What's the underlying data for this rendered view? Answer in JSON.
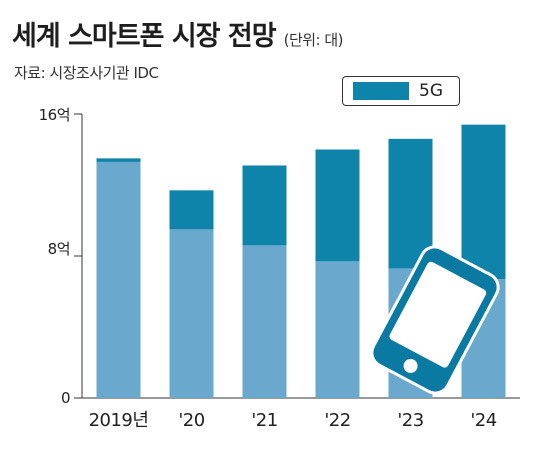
{
  "title": "세계 스마트폰 시장 전망",
  "unit": "(단위: 대)",
  "source": "자료: 시장조사기관 IDC",
  "colors": {
    "total": "#6aa8ce",
    "five_g": "#0f84aa",
    "axis": "#333333",
    "phone_icon": "#0a7aa3"
  },
  "chart_data": {
    "type": "bar",
    "stacked": true,
    "categories": [
      "2019년",
      "'20",
      "'21",
      "'22",
      "'23",
      "'24"
    ],
    "series": [
      {
        "name": "",
        "values": [
          13.3,
          9.5,
          8.6,
          7.7,
          7.3,
          6.7
        ]
      },
      {
        "name": "5G",
        "values": [
          0.2,
          2.2,
          4.5,
          6.3,
          7.3,
          8.7
        ]
      }
    ],
    "yticks": [
      "0",
      "8억",
      "16억"
    ],
    "ylim": [
      0,
      16
    ],
    "legend": {
      "position": "top-right",
      "entries": [
        "5G"
      ]
    },
    "grid": false
  }
}
